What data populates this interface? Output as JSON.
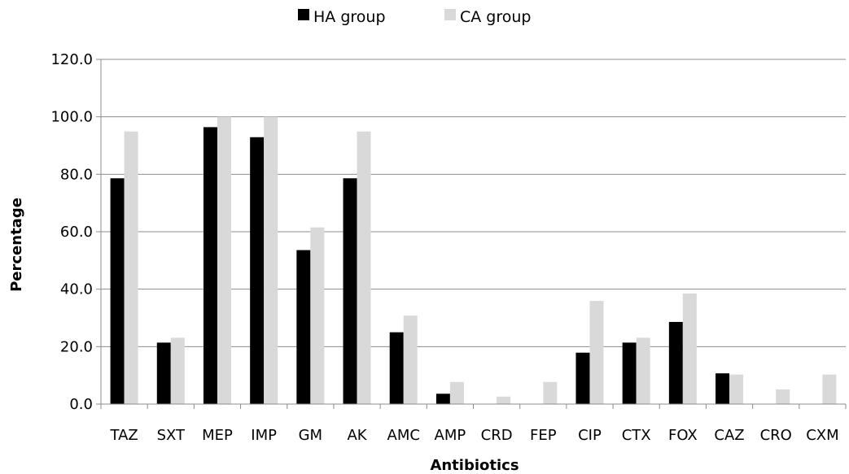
{
  "chart_data": {
    "type": "bar",
    "xlabel": "Antibiotics",
    "ylabel": "Percentage",
    "ylim": [
      0,
      120
    ],
    "yticks": [
      "0.0",
      "20.0",
      "40.0",
      "60.0",
      "80.0",
      "100.0",
      "120.0"
    ],
    "ytick_values": [
      0,
      20,
      40,
      60,
      80,
      100,
      120
    ],
    "grid": true,
    "legend_position": "top-center",
    "categories": [
      "TAZ",
      "SXT",
      "MEP",
      "IMP",
      "GM",
      "AK",
      "AMC",
      "AMP",
      "CRD",
      "FEP",
      "CIP",
      "CTX",
      "FOX",
      "CAZ",
      "CRO",
      "CXM"
    ],
    "series": [
      {
        "name": "HA group",
        "color": "#000000",
        "values": [
          78.6,
          21.4,
          96.4,
          92.9,
          53.6,
          78.6,
          25.0,
          3.6,
          0,
          0,
          17.9,
          21.4,
          28.6,
          10.7,
          0,
          0
        ]
      },
      {
        "name": "CA group",
        "color": "#d9d9d9",
        "values": [
          94.9,
          23.1,
          100,
          100,
          61.5,
          94.9,
          30.8,
          7.7,
          2.6,
          7.7,
          35.9,
          23.1,
          38.5,
          10.3,
          5.1,
          10.3
        ]
      }
    ]
  }
}
